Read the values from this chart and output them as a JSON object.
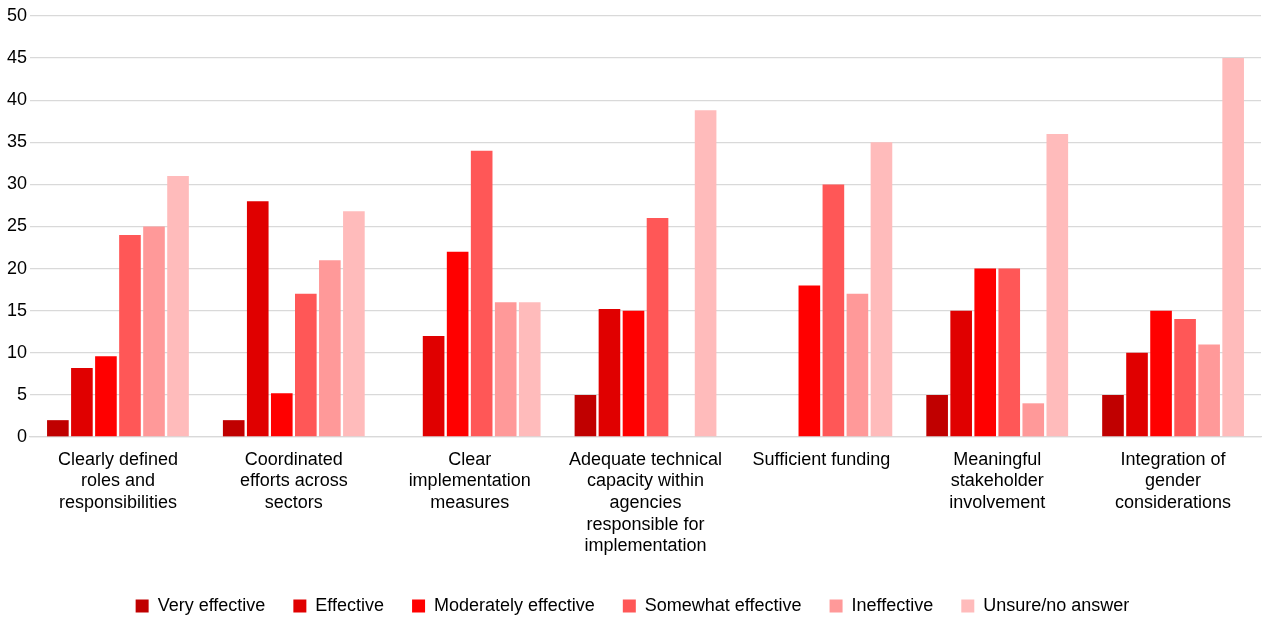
{
  "chart_data": {
    "type": "bar",
    "categories": [
      "Clearly defined roles and responsibilities",
      "Coordinated efforts across sectors",
      "Clear implementation measures",
      "Adequate technical capacity within agencies responsible for implementation",
      "Sufficient funding",
      "Meaningful stakeholder involvement",
      "Integration of gender considerations"
    ],
    "series": [
      {
        "name": "Very effective",
        "color": "#c00000",
        "values": [
          2,
          2,
          0,
          5,
          0,
          5,
          5
        ]
      },
      {
        "name": "Effective",
        "color": "#e00000",
        "values": [
          8.2,
          28,
          12,
          15.2,
          0,
          15,
          10
        ]
      },
      {
        "name": "Moderately effective",
        "color": "#ff0000",
        "values": [
          9.6,
          5.2,
          22,
          15,
          18,
          20,
          15
        ]
      },
      {
        "name": "Somewhat effective",
        "color": "#ff5757",
        "values": [
          24,
          17,
          34,
          26,
          30,
          20,
          14
        ]
      },
      {
        "name": "Ineffective",
        "color": "#ff9999",
        "values": [
          25,
          21,
          16,
          0,
          17,
          4,
          11
        ]
      },
      {
        "name": "Unsure/no answer",
        "color": "#ffbbbb",
        "values": [
          31,
          26.8,
          16,
          38.8,
          35,
          36,
          45
        ]
      }
    ],
    "ylim": [
      0,
      50
    ],
    "yticks": [
      0,
      5,
      10,
      15,
      20,
      25,
      30,
      35,
      40,
      45,
      50
    ],
    "grid": "y",
    "legend": "bottom"
  }
}
